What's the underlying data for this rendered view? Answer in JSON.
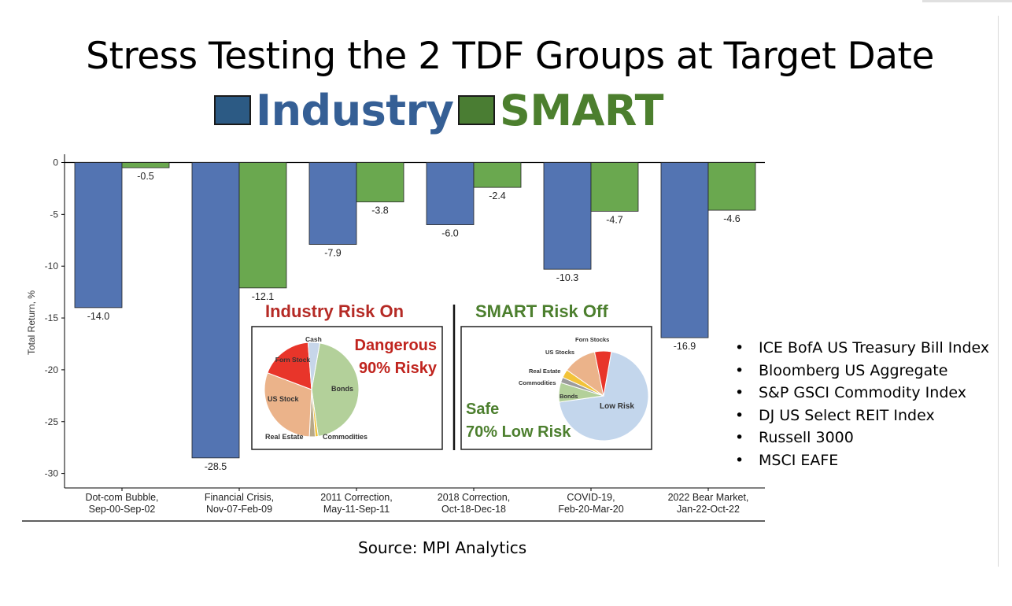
{
  "title": "Stress Testing the 2 TDF Groups at Target Date",
  "legend": [
    {
      "label": "Industry",
      "color": "#2c5a84",
      "text_color": "#355f95"
    },
    {
      "label": "SMART",
      "color": "#4a7d33",
      "text_color": "#4c7f2e"
    }
  ],
  "chart_data": {
    "type": "bar",
    "ylabel": "Total Return, %",
    "ylim": [
      -31,
      0
    ],
    "yticks": [
      0,
      -5,
      -10,
      -15,
      -20,
      -25,
      -30
    ],
    "categories": [
      [
        "Dot-com Bubble,",
        "Sep-00-Sep-02"
      ],
      [
        "Financial Crisis,",
        "Nov-07-Feb-09"
      ],
      [
        "2011 Correction,",
        "May-11-Sep-11"
      ],
      [
        "2018 Correction,",
        "Oct-18-Dec-18"
      ],
      [
        "COVID-19,",
        "Feb-20-Mar-20"
      ],
      [
        "2022 Bear Market,",
        "Jan-22-Oct-22"
      ]
    ],
    "series": [
      {
        "name": "Industry",
        "color": "#5374b2",
        "values": [
          -14.0,
          -28.5,
          -7.9,
          -6.0,
          -10.3,
          -16.9
        ]
      },
      {
        "name": "SMART",
        "color": "#6aa84f",
        "values": [
          -0.5,
          -12.1,
          -3.8,
          -2.4,
          -4.7,
          -4.6
        ]
      }
    ]
  },
  "insets": {
    "industry": {
      "heading": "Industry Risk On",
      "heading_color": "#b52a25",
      "note_line1": "Dangerous",
      "note_line2": "90% Risky",
      "note_color": "#c0241e",
      "slices": [
        {
          "label": "Bonds",
          "value": 45,
          "color": "#b3d09a"
        },
        {
          "label": "Commodities",
          "value": 1,
          "color": "#f2c339"
        },
        {
          "label": "Real Estate",
          "value": 2,
          "color": "#b8a888"
        },
        {
          "label": "US Stock",
          "value": 30,
          "color": "#ebb38a"
        },
        {
          "label": "Forn Stock",
          "value": 18,
          "color": "#e8352a"
        },
        {
          "label": "Cash",
          "value": 4,
          "color": "#c7d6ea"
        }
      ]
    },
    "smart": {
      "heading": "SMART Risk Off",
      "heading_color": "#4c7f2e",
      "note_line1": "Safe",
      "note_line2": "70% Low Risk",
      "note_color": "#4c7f2e",
      "slices": [
        {
          "label": "Low Risk",
          "value": 70,
          "color": "#c3d6ec"
        },
        {
          "label": "Bonds",
          "value": 7,
          "color": "#b3d09a"
        },
        {
          "label": "Commodities",
          "value": 2,
          "color": "#9c9c9c"
        },
        {
          "label": "Real Estate",
          "value": 3,
          "color": "#f2c339"
        },
        {
          "label": "US Stocks",
          "value": 12,
          "color": "#ebb38a"
        },
        {
          "label": "Forn Stocks",
          "value": 6,
          "color": "#e8352a"
        }
      ]
    }
  },
  "bullets": [
    "ICE BofA US Treasury Bill Index",
    "Bloomberg US Aggregate",
    "S&P GSCI Commodity Index",
    "DJ US Select REIT Index",
    "Russell 3000",
    "MSCI EAFE"
  ],
  "source": "Source: MPI Analytics"
}
